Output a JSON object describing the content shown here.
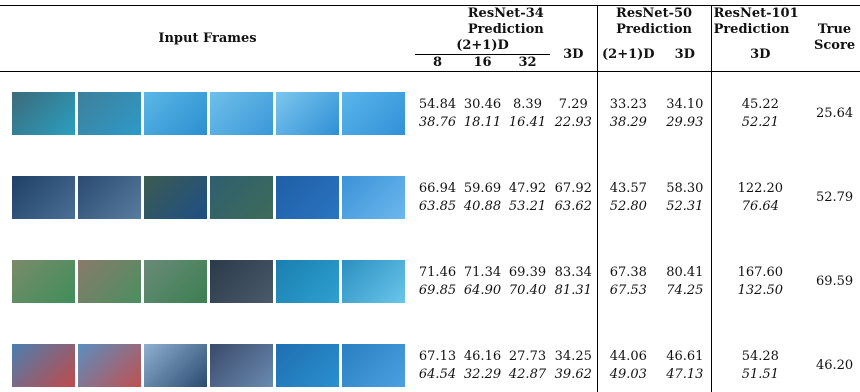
{
  "table": {
    "header": {
      "input_frames": "Input Frames",
      "groups": [
        {
          "name": "ResNet-34",
          "sub": "Prediction"
        },
        {
          "name": "ResNet-50",
          "sub": "Prediction"
        },
        {
          "name": "ResNet-101",
          "sub": "Prediction"
        }
      ],
      "r34_2p1d": "(2+1)D",
      "r34_3d": "3D",
      "r34_clips": [
        "8",
        "16",
        "32"
      ],
      "r50_2p1d": "(2+1)D",
      "r50_3d": "3D",
      "r101_3d": "3D",
      "true_score": "True Score"
    },
    "rows": [
      {
        "pred": [
          "54.84",
          "30.46",
          "8.39",
          "7.29",
          "33.23",
          "34.10",
          "45.22"
        ],
        "pred_italic": [
          "38.76",
          "18.11",
          "16.41",
          "22.93",
          "38.29",
          "29.93",
          "52.21"
        ],
        "true_score": "25.64"
      },
      {
        "pred": [
          "66.94",
          "59.69",
          "47.92",
          "67.92",
          "43.57",
          "58.30",
          "122.20"
        ],
        "pred_italic": [
          "63.85",
          "40.88",
          "53.21",
          "63.62",
          "52.80",
          "52.31",
          "76.64"
        ],
        "true_score": "52.79"
      },
      {
        "pred": [
          "71.46",
          "71.34",
          "69.39",
          "83.34",
          "67.38",
          "80.41",
          "167.60"
        ],
        "pred_italic": [
          "69.85",
          "64.90",
          "70.40",
          "81.31",
          "67.53",
          "74.25",
          "132.50"
        ],
        "true_score": "69.59"
      },
      {
        "pred": [
          "67.13",
          "46.16",
          "27.73",
          "34.25",
          "44.06",
          "46.61",
          "54.28"
        ],
        "pred_italic": [
          "64.54",
          "32.29",
          "42.87",
          "39.62",
          "49.03",
          "47.13",
          "51.51"
        ],
        "true_score": "46.20"
      }
    ]
  }
}
